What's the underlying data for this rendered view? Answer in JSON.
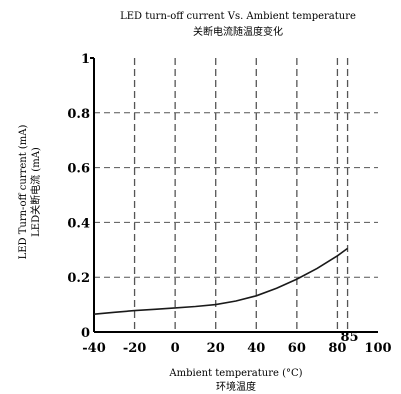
{
  "chart_data": {
    "type": "line",
    "title": "LED turn-off current Vs. Ambient temperature",
    "subtitle": "关断电流随温度变化",
    "xlabel": "Ambient temperature (°C)",
    "xlabel_cn": "环境温度",
    "ylabel": "LED Turn-off current (mA)",
    "ylabel_cn": "LED关断电流 (mA)",
    "xlim": [
      -40,
      100
    ],
    "ylim": [
      0,
      1
    ],
    "x_ticks": [
      "-40",
      "-20",
      "0",
      "20",
      "40",
      "60",
      "80",
      "100"
    ],
    "extra_x_tick": "85",
    "y_ticks": [
      "0",
      "0.2",
      "0.4",
      "0.6",
      "0.8",
      "1"
    ],
    "grid": true,
    "series": [
      {
        "x": [
          -40,
          -30,
          -20,
          -10,
          0,
          10,
          20,
          30,
          40,
          50,
          60,
          70,
          80,
          85
        ],
        "y": [
          0.065,
          0.072,
          0.078,
          0.083,
          0.088,
          0.093,
          0.1,
          0.113,
          0.132,
          0.16,
          0.193,
          0.232,
          0.278,
          0.305
        ]
      }
    ],
    "line_color": "#1a1a1a",
    "grid_color": "#555555"
  }
}
